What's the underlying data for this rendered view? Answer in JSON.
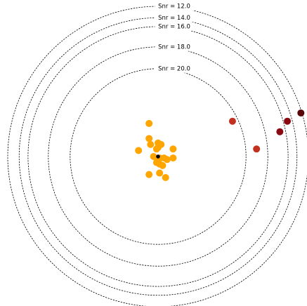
{
  "chart_data": {
    "type": "scatter",
    "title": "",
    "xlabel": "",
    "ylabel": "",
    "grid": false,
    "axes_visible": false,
    "center": {
      "x": 0,
      "y": 0,
      "color": "#000000"
    },
    "contours": [
      {
        "label": "Snr = 12.0",
        "radius": 1.0
      },
      {
        "label": "Snr = 14.0",
        "radius": 0.924
      },
      {
        "label": "Snr = 16.0",
        "radius": 0.865
      },
      {
        "label": "Snr = 18.0",
        "radius": 0.73
      },
      {
        "label": "Snr = 20.0",
        "radius": 0.585
      }
    ],
    "series": [
      {
        "color": "#ffa500",
        "points": [
          [
            -0.06,
            0.22
          ],
          [
            -0.06,
            0.12
          ],
          [
            -0.05,
            0.08
          ],
          [
            0.0,
            0.09
          ],
          [
            0.02,
            0.08
          ],
          [
            0.0,
            0.06
          ],
          [
            -0.01,
            0.05
          ],
          [
            -0.13,
            0.04
          ],
          [
            0.1,
            0.05
          ],
          [
            0.1,
            -0.01
          ],
          [
            -0.03,
            0.0
          ],
          [
            0.01,
            -0.01
          ],
          [
            0.04,
            -0.01
          ],
          [
            0.06,
            -0.02
          ],
          [
            -0.01,
            -0.04
          ],
          [
            0.0,
            -0.04
          ],
          [
            0.01,
            -0.05
          ],
          [
            0.03,
            -0.06
          ],
          [
            -0.06,
            -0.12
          ],
          [
            0.01,
            -0.11
          ],
          [
            0.05,
            -0.14
          ]
        ]
      },
      {
        "color": "#c23020",
        "points": [
          [
            0.495,
            0.235
          ],
          [
            0.655,
            0.05
          ]
        ]
      },
      {
        "color": "#8b0a12",
        "points": [
          [
            0.81,
            0.165
          ],
          [
            0.86,
            0.235
          ]
        ]
      },
      {
        "color": "#5a0508",
        "points": [
          [
            0.95,
            0.29
          ]
        ]
      }
    ]
  }
}
